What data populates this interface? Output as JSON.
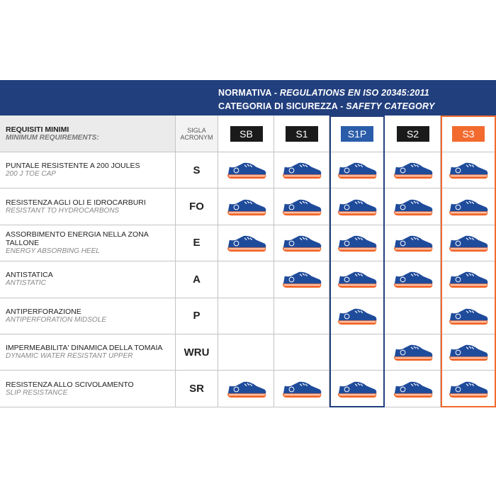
{
  "header": {
    "line1": {
      "it": "NORMATIVA -",
      "en": "REGULATIONS EN ISO 20345:2011"
    },
    "line2": {
      "it": "CATEGORIA DI SICUREZZA -",
      "en": "SAFETY CATEGORY"
    }
  },
  "table": {
    "head": {
      "it": "REQUISITI MINIMI",
      "en": "MINIMUM REQUIREMENTS:",
      "acronym_it": "SIGLA",
      "acronym_en": "ACRONYM"
    },
    "categories": [
      {
        "label": "SB",
        "color": "#1a1a1a"
      },
      {
        "label": "S1",
        "color": "#1a1a1a"
      },
      {
        "label": "S1P",
        "color": "#2a5caa",
        "outline": "#223f7d"
      },
      {
        "label": "S2",
        "color": "#1a1a1a"
      },
      {
        "label": "S3",
        "color": "#f26a2e",
        "outline": "#f26a2e"
      }
    ],
    "rows": [
      {
        "it": "PUNTALE RESISTENTE A 200 JOULES",
        "en": "200 J TOE CAP",
        "acronym": "S",
        "cells": [
          true,
          true,
          true,
          true,
          true
        ]
      },
      {
        "it": "RESISTENZA AGLI OLI E IDROCARBURI",
        "en": "RESISTANT TO HYDROCARBONS",
        "acronym": "FO",
        "cells": [
          true,
          true,
          true,
          true,
          true
        ]
      },
      {
        "it": "ASSORBIMENTO ENERGIA NELLA ZONA TALLONE",
        "en": "ENERGY ABSORBING HEEL",
        "acronym": "E",
        "cells": [
          true,
          true,
          true,
          true,
          true
        ]
      },
      {
        "it": "ANTISTATICA",
        "en": "ANTISTATIC",
        "acronym": "A",
        "cells": [
          false,
          true,
          true,
          true,
          true
        ]
      },
      {
        "it": "ANTIPERFORAZIONE",
        "en": "ANTIPERFORATION MIDSOLE",
        "acronym": "P",
        "cells": [
          false,
          false,
          true,
          false,
          true
        ]
      },
      {
        "it": "IMPERMEABILITA' DINAMICA DELLA TOMAIA",
        "en": "DYNAMIC WATER  RESISTANT UPPER",
        "acronym": "WRU",
        "cells": [
          false,
          false,
          false,
          true,
          true
        ]
      },
      {
        "it": "RESISTENZA ALLO SCIVOLAMENTO",
        "en": "SLIP RESISTANCE",
        "acronym": "SR",
        "cells": [
          true,
          true,
          true,
          true,
          true
        ]
      }
    ]
  }
}
